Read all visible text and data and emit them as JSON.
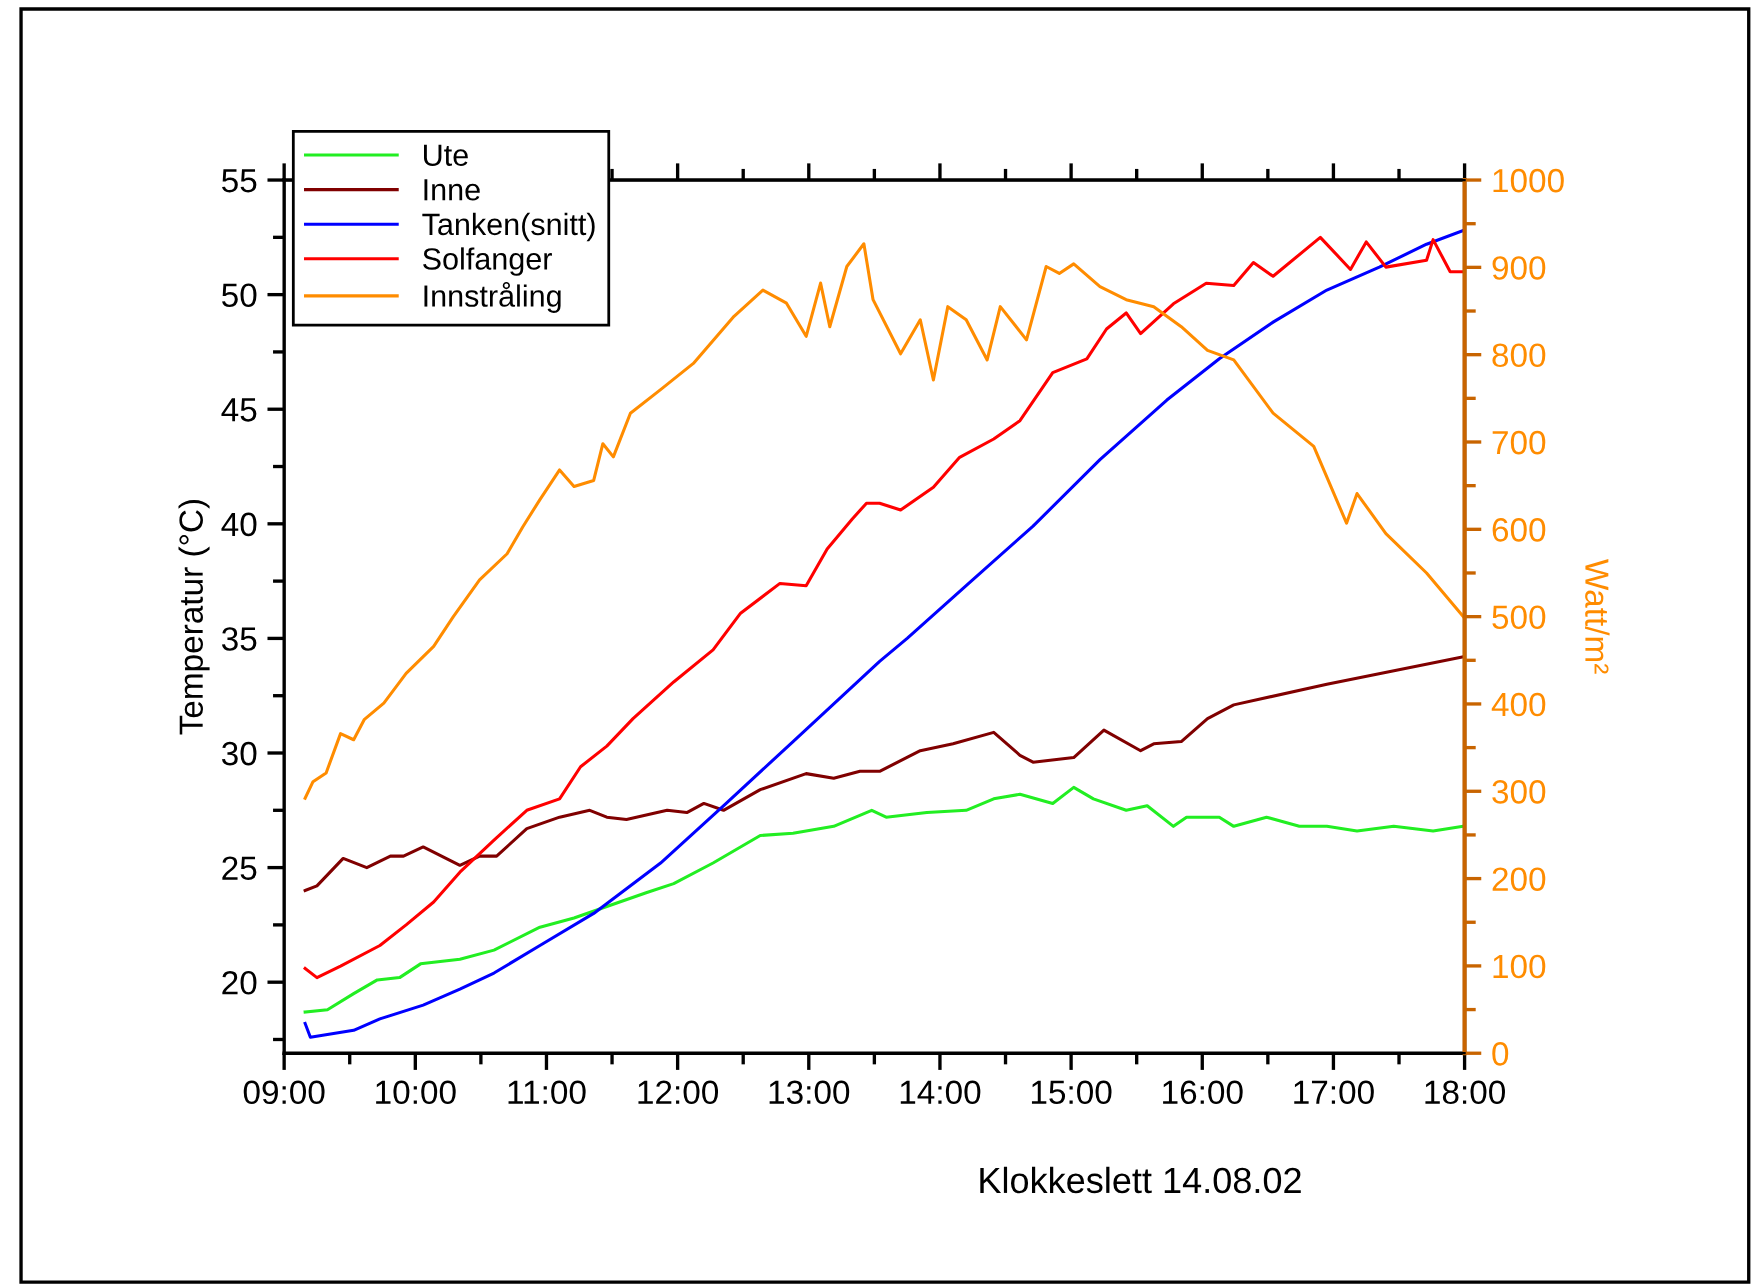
{
  "chart_data": {
    "type": "line",
    "xlabel": "Klokkeslett 14.08.02",
    "ylabel": "Temperatur (°C)",
    "y2label": "Watt/m²",
    "xlim": [
      9,
      18
    ],
    "xticks": [
      {
        "value": 9,
        "label": "09:00"
      },
      {
        "value": 10,
        "label": "10:00"
      },
      {
        "value": 11,
        "label": "11:00"
      },
      {
        "value": 12,
        "label": "12:00"
      },
      {
        "value": 13,
        "label": "13:00"
      },
      {
        "value": 14,
        "label": "14:00"
      },
      {
        "value": 15,
        "label": "15:00"
      },
      {
        "value": 16,
        "label": "16:00"
      },
      {
        "value": 17,
        "label": "17:00"
      },
      {
        "value": 18,
        "label": "18:00"
      }
    ],
    "ylim": [
      16.9,
      55
    ],
    "yticks": [
      20,
      25,
      30,
      35,
      40,
      45,
      50,
      55
    ],
    "y2lim": [
      0,
      1000
    ],
    "y2ticks": [
      0,
      100,
      200,
      300,
      400,
      500,
      600,
      700,
      800,
      900,
      1000
    ],
    "grid": false,
    "legend": "top left",
    "marker": "none",
    "line_style": "solid",
    "series": [
      {
        "name": "Ute",
        "color": "#22ee22",
        "x": [
          9.16,
          9.33,
          9.53,
          9.71,
          9.88,
          10.04,
          10.34,
          10.6,
          10.95,
          11.21,
          11.46,
          11.76,
          11.97,
          12.27,
          12.63,
          12.88,
          13.19,
          13.48,
          13.59,
          13.9,
          14.2,
          14.41,
          14.61,
          14.86,
          15.02,
          15.17,
          15.42,
          15.58,
          15.78,
          15.88,
          16.13,
          16.24,
          16.49,
          16.74,
          16.95,
          17.18,
          17.46,
          17.76,
          17.99
        ],
        "values": [
          18.7,
          18.8,
          19.5,
          20.1,
          20.2,
          20.8,
          21.0,
          21.4,
          22.4,
          22.8,
          23.3,
          23.9,
          24.3,
          25.2,
          26.4,
          26.5,
          26.8,
          27.5,
          27.2,
          27.4,
          27.5,
          28.0,
          28.2,
          27.8,
          28.5,
          28.0,
          27.5,
          27.7,
          26.8,
          27.2,
          27.2,
          26.8,
          27.2,
          26.8,
          26.8,
          26.6,
          26.8,
          26.6,
          26.8
        ]
      },
      {
        "name": "Inne",
        "color": "#800000",
        "x": [
          9.16,
          9.25,
          9.45,
          9.63,
          9.81,
          9.91,
          10.06,
          10.34,
          10.49,
          10.62,
          10.85,
          11.1,
          11.33,
          11.46,
          11.61,
          11.92,
          12.07,
          12.2,
          12.35,
          12.63,
          12.98,
          13.19,
          13.39,
          13.54,
          13.85,
          14.1,
          14.41,
          14.61,
          14.71,
          15.02,
          15.25,
          15.53,
          15.63,
          15.84,
          16.04,
          16.24,
          16.95,
          17.99
        ],
        "values": [
          24.0,
          24.2,
          25.4,
          25.0,
          25.5,
          25.5,
          25.9,
          25.1,
          25.5,
          25.5,
          26.7,
          27.2,
          27.5,
          27.2,
          27.1,
          27.5,
          27.4,
          27.8,
          27.5,
          28.4,
          29.1,
          28.9,
          29.2,
          29.2,
          30.1,
          30.4,
          30.9,
          29.9,
          29.6,
          29.8,
          31.0,
          30.1,
          30.4,
          30.5,
          31.5,
          32.1,
          33.0,
          34.2
        ]
      },
      {
        "name": "Tanken(snitt)",
        "color": "#0000ff",
        "x": [
          9.16,
          9.2,
          9.53,
          9.73,
          10.06,
          10.34,
          10.6,
          10.95,
          11.36,
          11.87,
          12.37,
          12.88,
          13.54,
          13.75,
          14.2,
          14.71,
          15.22,
          15.73,
          16.13,
          16.54,
          16.95,
          17.35,
          17.71,
          17.99
        ],
        "values": [
          18.2,
          17.6,
          17.9,
          18.4,
          19.0,
          19.7,
          20.4,
          21.6,
          23.0,
          25.2,
          27.8,
          30.5,
          34.0,
          35.0,
          37.3,
          39.9,
          42.8,
          45.4,
          47.2,
          48.8,
          50.2,
          51.2,
          52.2,
          52.8
        ]
      },
      {
        "name": "Solfanger",
        "color": "#ff0000",
        "x": [
          9.16,
          9.25,
          9.43,
          9.73,
          9.93,
          10.14,
          10.34,
          10.6,
          10.85,
          11.1,
          11.26,
          11.46,
          11.66,
          11.97,
          12.27,
          12.48,
          12.78,
          12.98,
          13.14,
          13.33,
          13.44,
          13.54,
          13.7,
          13.95,
          14.15,
          14.41,
          14.61,
          14.86,
          15.12,
          15.27,
          15.42,
          15.53,
          15.78,
          16.03,
          16.24,
          16.39,
          16.54,
          16.9,
          17.13,
          17.25,
          17.4,
          17.71,
          17.76,
          17.89,
          17.99
        ],
        "values": [
          20.6,
          20.2,
          20.7,
          21.6,
          22.5,
          23.5,
          24.8,
          26.2,
          27.5,
          28.0,
          29.4,
          30.3,
          31.5,
          33.1,
          34.5,
          36.1,
          37.4,
          37.3,
          38.9,
          40.2,
          40.9,
          40.9,
          40.6,
          41.6,
          42.9,
          43.7,
          44.5,
          46.6,
          47.2,
          48.5,
          49.2,
          48.3,
          49.6,
          50.5,
          50.4,
          51.4,
          50.8,
          52.5,
          51.1,
          52.3,
          51.2,
          51.5,
          52.4,
          51.0,
          51.0
        ]
      },
      {
        "name": "Innstråling",
        "color": "#ff8c00",
        "axis": "y2",
        "x": [
          9.16,
          9.22,
          9.32,
          9.43,
          9.53,
          9.61,
          9.76,
          9.93,
          10.14,
          10.29,
          10.49,
          10.7,
          10.82,
          10.95,
          11.1,
          11.21,
          11.36,
          11.43,
          11.51,
          11.64,
          11.87,
          12.12,
          12.43,
          12.65,
          12.83,
          12.98,
          13.09,
          13.16,
          13.29,
          13.42,
          13.49,
          13.7,
          13.85,
          13.95,
          14.06,
          14.2,
          14.36,
          14.46,
          14.66,
          14.81,
          14.91,
          15.02,
          15.22,
          15.42,
          15.63,
          15.84,
          16.04,
          16.24,
          16.54,
          16.85,
          17.1,
          17.18,
          17.4,
          17.71,
          17.99
        ],
        "values": [
          292,
          311,
          321,
          366,
          359,
          382,
          401,
          435,
          466,
          500,
          542,
          572,
          603,
          634,
          668,
          649,
          656,
          698,
          683,
          733,
          760,
          790,
          844,
          874,
          859,
          821,
          882,
          832,
          901,
          927,
          863,
          801,
          840,
          771,
          855,
          840,
          794,
          855,
          817,
          901,
          893,
          904,
          878,
          863,
          855,
          832,
          805,
          794,
          733,
          695,
          607,
          641,
          595,
          550,
          500
        ]
      }
    ]
  }
}
